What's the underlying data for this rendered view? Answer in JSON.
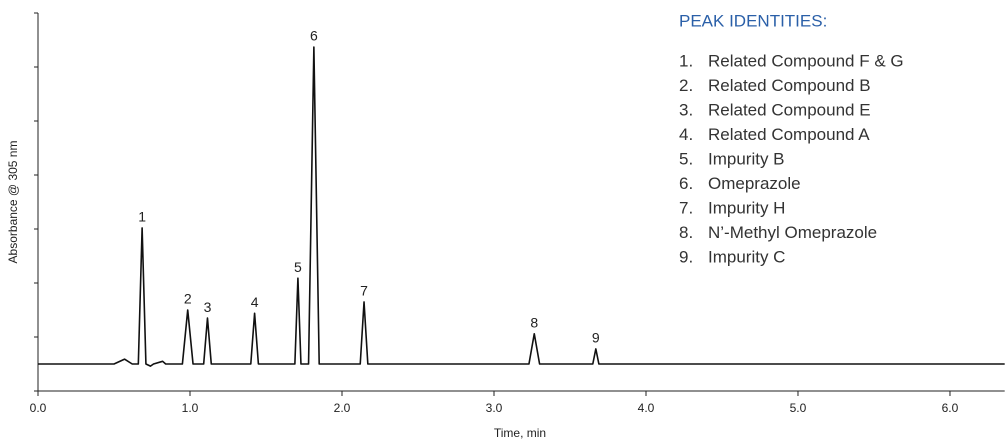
{
  "chart_data": {
    "type": "line",
    "x_label": "Time, min",
    "y_label": "Absorbance @ 305 nm",
    "xlim": [
      0,
      6.36
    ],
    "ylim": [
      0,
      7
    ],
    "xticks": [
      {
        "value": 0,
        "label": "0.0"
      },
      {
        "value": 1,
        "label": "1.0"
      },
      {
        "value": 2,
        "label": "2.0"
      },
      {
        "value": 3,
        "label": "3.0"
      },
      {
        "value": 4,
        "label": "4.0"
      },
      {
        "value": 5,
        "label": "5.0"
      },
      {
        "value": 6,
        "label": "6.0"
      }
    ],
    "yticks": [
      0,
      1,
      2,
      3,
      4,
      5,
      6,
      7
    ],
    "series": [
      {
        "color": "#111111",
        "x": [
          0.0,
          0.5,
          0.57,
          0.62,
          0.66,
          0.685,
          0.71,
          0.74,
          0.76,
          0.82,
          0.84,
          0.95,
          0.985,
          1.02,
          1.09,
          1.115,
          1.14,
          1.4,
          1.425,
          1.45,
          1.69,
          1.71,
          1.73,
          1.78,
          1.815,
          1.85,
          2.12,
          2.145,
          2.17,
          3.23,
          3.265,
          3.3,
          3.65,
          3.67,
          3.69,
          6.36
        ],
        "values": [
          0.5,
          0.5,
          0.59,
          0.5,
          0.5,
          3.02,
          0.5,
          0.46,
          0.5,
          0.55,
          0.5,
          0.5,
          1.5,
          0.5,
          0.5,
          1.35,
          0.5,
          0.5,
          1.44,
          0.5,
          0.5,
          2.09,
          0.5,
          0.5,
          6.37,
          0.5,
          0.5,
          1.65,
          0.5,
          0.5,
          1.06,
          0.5,
          0.5,
          0.78,
          0.5,
          0.5
        ]
      }
    ],
    "peaks": [
      {
        "label": "1",
        "x": 0.685,
        "y": 3.02
      },
      {
        "label": "2",
        "x": 0.985,
        "y": 1.5
      },
      {
        "label": "3",
        "x": 1.115,
        "y": 1.35
      },
      {
        "label": "4",
        "x": 1.425,
        "y": 1.44
      },
      {
        "label": "5",
        "x": 1.71,
        "y": 2.09
      },
      {
        "label": "6",
        "x": 1.815,
        "y": 6.37
      },
      {
        "label": "7",
        "x": 2.145,
        "y": 1.65
      },
      {
        "label": "8",
        "x": 3.265,
        "y": 1.06
      },
      {
        "label": "9",
        "x": 3.67,
        "y": 0.78
      }
    ],
    "legend": {
      "title": "PEAK IDENTITIES:",
      "title_color": "#2a5fa8",
      "items": [
        {
          "number": "1.",
          "name": "Related Compound F & G"
        },
        {
          "number": "2.",
          "name": "Related Compound B"
        },
        {
          "number": "3.",
          "name": "Related Compound E"
        },
        {
          "number": "4.",
          "name": "Related Compound A"
        },
        {
          "number": "5.",
          "name": "Impurity B"
        },
        {
          "number": "6.",
          "name": "Omeprazole"
        },
        {
          "number": "7.",
          "name": "Impurity H"
        },
        {
          "number": "8.",
          "name": "N’-Methyl Omeprazole"
        },
        {
          "number": "9.",
          "name": "Impurity C"
        }
      ]
    }
  }
}
